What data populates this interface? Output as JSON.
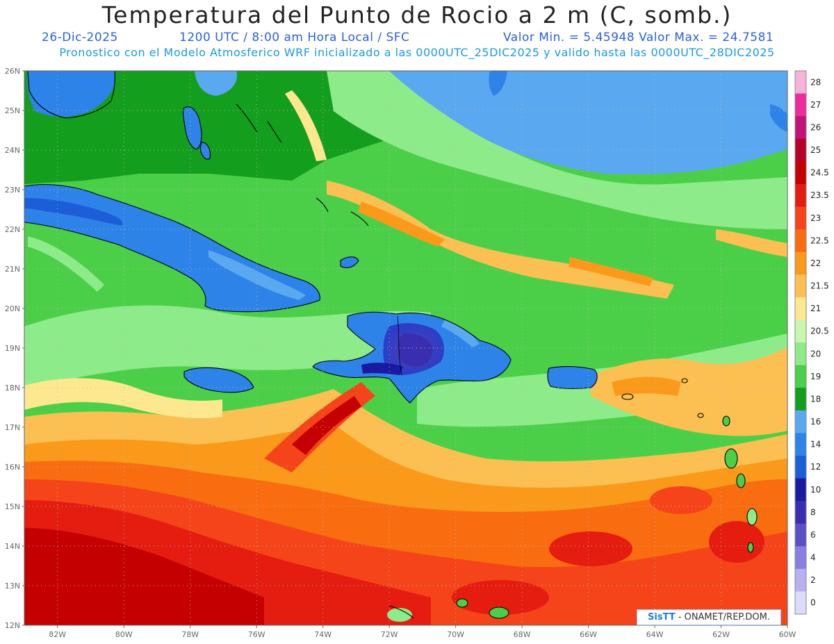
{
  "header": {
    "title": "Temperatura del Punto de Rocio a 2 m (C, somb.)",
    "date": "26-Dic-2025",
    "time": "1200 UTC / 8:00 am Hora Local / SFC",
    "min_max": "Valor Min. = 5.45948  Valor Max. = 24.7581",
    "model_info": "Pronostico con el Modelo Atmosferico WRF inicializado a las 0000UTC_25DIC2025 y valido hasta las  0000UTC_28DIC2025"
  },
  "map": {
    "lon_range": [
      -83,
      -60
    ],
    "lat_range": [
      12,
      26
    ],
    "lat_labels": [
      "26N",
      "25N",
      "24N",
      "23N",
      "22N",
      "21N",
      "20N",
      "19N",
      "18N",
      "17N",
      "16N",
      "15N",
      "14N",
      "13N",
      "12N"
    ],
    "lon_labels": [
      "82W",
      "80W",
      "78W",
      "76W",
      "74W",
      "72W",
      "70W",
      "68W",
      "66W",
      "64W",
      "62W",
      "60W"
    ],
    "grid": "dotted"
  },
  "colorbar": {
    "labels": [
      "28",
      "27",
      "26",
      "25",
      "24.5",
      "23.5",
      "23",
      "22.5",
      "22",
      "21.5",
      "21",
      "20.5",
      "20",
      "19",
      "18",
      "16",
      "14",
      "12",
      "10",
      "8",
      "6",
      "4",
      "2",
      "0"
    ],
    "colors": [
      "#f8b4d8",
      "#ee2b9d",
      "#c21378",
      "#b5002a",
      "#c40000",
      "#e51c10",
      "#f5441a",
      "#f96c10",
      "#fb9a1a",
      "#fcc052",
      "#fde890",
      "#c8f8b0",
      "#8eeb8a",
      "#4ccf48",
      "#149e1e",
      "#5aa8f0",
      "#2e83e8",
      "#1c5ed8",
      "#1a1aa0",
      "#3a2eb0",
      "#5a50c8",
      "#8a7ee0",
      "#b8b0f0",
      "#dcdcf8"
    ]
  },
  "credit": {
    "brand": "SisTT",
    "text": " - ONAMET/REP.DOM."
  }
}
